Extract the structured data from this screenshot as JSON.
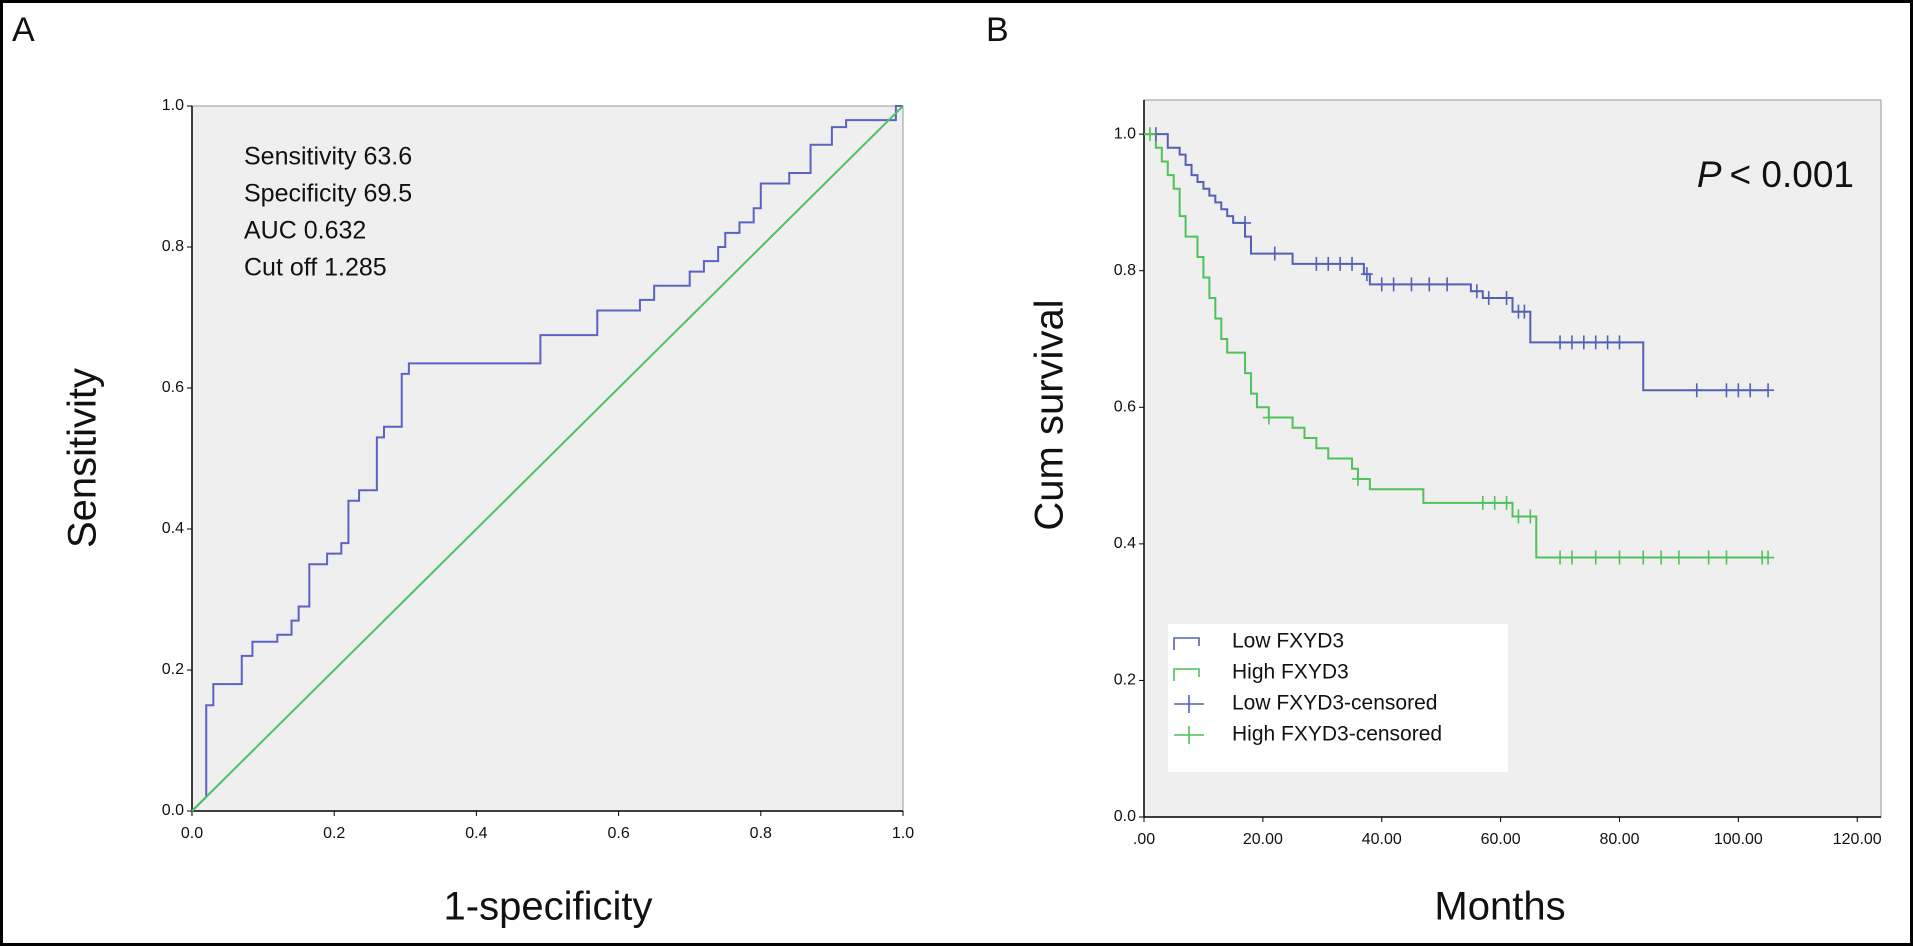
{
  "chart_data": [
    {
      "type": "line",
      "panel_label": "A",
      "x_label": "1-specificity",
      "y_label": "Sensitivity",
      "annotations": [
        "Sensitivity 63.6",
        "Specificity 69.5",
        "AUC 0.632",
        "Cut off 1.285"
      ],
      "xlim": [
        0,
        1
      ],
      "ylim": [
        0,
        1
      ],
      "xticks": [
        {
          "value": 0,
          "label": "0.0"
        },
        0.2,
        0.4,
        0.6,
        0.8,
        {
          "value": 1,
          "label": "1.0"
        }
      ],
      "yticks": [
        {
          "value": 0,
          "label": "0.0"
        },
        0.2,
        0.4,
        0.6,
        0.8,
        {
          "value": 1,
          "label": "1.0"
        }
      ],
      "grid": false,
      "series": [
        {
          "color": "#5b63c2",
          "x": [
            0,
            0.01,
            0.02,
            0.02,
            0.03,
            0.03,
            0.07,
            0.07,
            0.085,
            0.085,
            0.12,
            0.12,
            0.14,
            0.14,
            0.15,
            0.15,
            0.165,
            0.165,
            0.19,
            0.19,
            0.21,
            0.21,
            0.22,
            0.22,
            0.235,
            0.235,
            0.26,
            0.26,
            0.27,
            0.27,
            0.295,
            0.295,
            0.305,
            0.305,
            0.49,
            0.49,
            0.57,
            0.57,
            0.63,
            0.63,
            0.65,
            0.65,
            0.7,
            0.7,
            0.72,
            0.72,
            0.74,
            0.74,
            0.75,
            0.75,
            0.77,
            0.77,
            0.79,
            0.79,
            0.8,
            0.8,
            0.84,
            0.84,
            0.87,
            0.87,
            0.9,
            0.9,
            0.92,
            0.92,
            0.99,
            0.99,
            1
          ],
          "values": [
            0,
            0.01,
            0.02,
            0.15,
            0.15,
            0.18,
            0.18,
            0.22,
            0.22,
            0.24,
            0.24,
            0.25,
            0.25,
            0.27,
            0.27,
            0.29,
            0.29,
            0.35,
            0.35,
            0.365,
            0.365,
            0.38,
            0.38,
            0.44,
            0.44,
            0.455,
            0.455,
            0.53,
            0.53,
            0.545,
            0.545,
            0.62,
            0.62,
            0.635,
            0.635,
            0.675,
            0.675,
            0.71,
            0.71,
            0.725,
            0.725,
            0.745,
            0.745,
            0.765,
            0.765,
            0.78,
            0.78,
            0.8,
            0.8,
            0.82,
            0.82,
            0.835,
            0.835,
            0.855,
            0.855,
            0.89,
            0.89,
            0.905,
            0.905,
            0.945,
            0.945,
            0.97,
            0.97,
            0.98,
            0.98,
            1,
            1
          ]
        },
        {
          "color": "#4cc265",
          "x": [
            0,
            1
          ],
          "values": [
            0,
            1
          ]
        }
      ]
    },
    {
      "type": "survival",
      "panel_label": "B",
      "x_label": "Months",
      "y_label": "Cum survival",
      "annotation": {
        "italic": "P",
        "text": "< 0.001"
      },
      "xlim": [
        0,
        124
      ],
      "ylim": [
        0,
        1.05
      ],
      "xticks": [
        {
          "value": 0,
          "label": ".00"
        },
        {
          "value": 20,
          "label": "20.00"
        },
        {
          "value": 40,
          "label": "40.00"
        },
        {
          "value": 60,
          "label": "60.00"
        },
        {
          "value": 80,
          "label": "80.00"
        },
        {
          "value": 100,
          "label": "100.00"
        },
        {
          "value": 120,
          "label": "120.00"
        }
      ],
      "yticks": [
        {
          "value": 0,
          "label": "0.0"
        },
        0.2,
        0.4,
        0.6,
        0.8,
        {
          "value": 1,
          "label": "1.0"
        }
      ],
      "grid": false,
      "legend": "lower left",
      "series": [
        {
          "name": "Low FXYD3",
          "color": "#5560b4",
          "marker": "step",
          "x": [
            0,
            4,
            4,
            6,
            6,
            7,
            7,
            8,
            8,
            9,
            9,
            10,
            10,
            11,
            11,
            12,
            12,
            13,
            13,
            14,
            14,
            15,
            15,
            17,
            17,
            18,
            18,
            25,
            25,
            37,
            37,
            38,
            38,
            55,
            55,
            57,
            57,
            62,
            62,
            65,
            65,
            84,
            84,
            105
          ],
          "values": [
            1,
            1,
            0.98,
            0.98,
            0.97,
            0.97,
            0.955,
            0.955,
            0.94,
            0.94,
            0.93,
            0.93,
            0.92,
            0.92,
            0.91,
            0.91,
            0.9,
            0.9,
            0.89,
            0.89,
            0.88,
            0.88,
            0.87,
            0.87,
            0.85,
            0.85,
            0.825,
            0.825,
            0.81,
            0.81,
            0.795,
            0.795,
            0.78,
            0.78,
            0.77,
            0.77,
            0.76,
            0.76,
            0.74,
            0.74,
            0.695,
            0.695,
            0.625,
            0.625
          ]
        },
        {
          "name": "High FXYD3",
          "color": "#4fc25a",
          "marker": "step",
          "x": [
            0,
            2,
            2,
            3,
            3,
            4,
            4,
            5,
            5,
            6,
            6,
            7,
            7,
            9,
            9,
            10,
            10,
            11,
            11,
            12,
            12,
            13,
            13,
            14,
            14,
            17,
            17,
            18,
            18,
            19,
            19,
            21,
            21,
            25,
            25,
            27,
            27,
            29,
            29,
            31,
            31,
            35,
            35,
            36,
            36,
            38,
            38,
            47,
            47,
            62,
            62,
            66,
            66,
            105
          ],
          "values": [
            1,
            1,
            0.98,
            0.98,
            0.96,
            0.96,
            0.94,
            0.94,
            0.92,
            0.92,
            0.88,
            0.88,
            0.85,
            0.85,
            0.82,
            0.82,
            0.79,
            0.79,
            0.76,
            0.76,
            0.73,
            0.73,
            0.7,
            0.7,
            0.68,
            0.68,
            0.65,
            0.65,
            0.62,
            0.62,
            0.6,
            0.6,
            0.585,
            0.585,
            0.57,
            0.57,
            0.555,
            0.555,
            0.54,
            0.54,
            0.525,
            0.525,
            0.51,
            0.51,
            0.495,
            0.495,
            0.48,
            0.48,
            0.46,
            0.46,
            0.44,
            0.44,
            0.38,
            0.38
          ]
        },
        {
          "name": "Low FXYD3-censored",
          "color": "#5560b4",
          "marker": "plus",
          "x": [
            2,
            17,
            22,
            29,
            31,
            33,
            35,
            37.5,
            40,
            42,
            45,
            48,
            51,
            56,
            58,
            61,
            63,
            64,
            70,
            72,
            74,
            76,
            78,
            80,
            93,
            98,
            100,
            102,
            105
          ],
          "values": [
            1,
            0.87,
            0.825,
            0.81,
            0.81,
            0.81,
            0.81,
            0.795,
            0.78,
            0.78,
            0.78,
            0.78,
            0.78,
            0.77,
            0.76,
            0.76,
            0.74,
            0.74,
            0.695,
            0.695,
            0.695,
            0.695,
            0.695,
            0.695,
            0.625,
            0.625,
            0.625,
            0.625,
            0.625
          ]
        },
        {
          "name": "High FXYD3-censored",
          "color": "#4fc25a",
          "marker": "plus",
          "x": [
            1,
            21,
            36,
            57,
            59,
            61,
            63,
            65,
            70,
            72,
            76,
            80,
            84,
            87,
            90,
            95,
            98,
            104,
            105
          ],
          "values": [
            1,
            0.585,
            0.495,
            0.46,
            0.46,
            0.46,
            0.44,
            0.44,
            0.38,
            0.38,
            0.38,
            0.38,
            0.38,
            0.38,
            0.38,
            0.38,
            0.38,
            0.38,
            0.38
          ]
        }
      ]
    }
  ]
}
